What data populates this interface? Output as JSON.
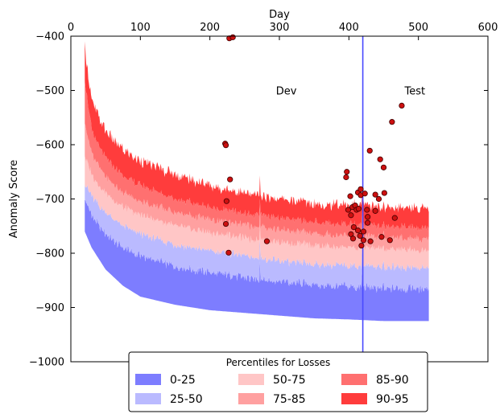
{
  "chart_data": {
    "type": "area",
    "xlabel": "Day",
    "ylabel": "Anomaly Score",
    "xlim": [
      0,
      600
    ],
    "ylim": [
      -1000,
      -400
    ],
    "x_ticks": [
      0,
      100,
      200,
      300,
      400,
      500,
      600
    ],
    "y_ticks": [
      -400,
      -500,
      -600,
      -700,
      -800,
      -900,
      -1000
    ],
    "x_axis_position": "top",
    "grid": false,
    "split_line": {
      "x": 420,
      "color": "#4a4aff"
    },
    "annotations": [
      {
        "text": "Dev",
        "x": 310,
        "y": -500
      },
      {
        "text": "Test",
        "x": 495,
        "y": -500
      }
    ],
    "x_range": [
      20,
      515
    ],
    "legend": {
      "title": "Percentiles for Losses",
      "placement": "bottom-center",
      "entries": [
        {
          "label": "0-25",
          "color": "#7d7dff"
        },
        {
          "label": "25-50",
          "color": "#babaff"
        },
        {
          "label": "50-75",
          "color": "#ffc6c6"
        },
        {
          "label": "75-85",
          "color": "#ffa0a0"
        },
        {
          "label": "85-90",
          "color": "#ff7070"
        },
        {
          "label": "90-95",
          "color": "#ff3c3c"
        }
      ]
    },
    "bands": [
      {
        "name": "0-25",
        "color": "#7d7dff",
        "lower": [
          [
            20,
            -760
          ],
          [
            30,
            -790
          ],
          [
            50,
            -830
          ],
          [
            75,
            -860
          ],
          [
            100,
            -880
          ],
          [
            150,
            -895
          ],
          [
            200,
            -905
          ],
          [
            250,
            -910
          ],
          [
            300,
            -915
          ],
          [
            350,
            -920
          ],
          [
            400,
            -922
          ],
          [
            450,
            -925
          ],
          [
            515,
            -925
          ]
        ]
      },
      {
        "name": "25-50",
        "color": "#babaff",
        "lower": [
          [
            20,
            -700
          ],
          [
            30,
            -730
          ],
          [
            50,
            -765
          ],
          [
            75,
            -790
          ],
          [
            100,
            -805
          ],
          [
            150,
            -825
          ],
          [
            200,
            -835
          ],
          [
            250,
            -845
          ],
          [
            300,
            -852
          ],
          [
            350,
            -858
          ],
          [
            400,
            -862
          ],
          [
            450,
            -865
          ],
          [
            515,
            -865
          ]
        ]
      },
      {
        "name": "50-75",
        "color": "#ffc6c6",
        "lower": [
          [
            20,
            -670
          ],
          [
            30,
            -695
          ],
          [
            50,
            -725
          ],
          [
            75,
            -750
          ],
          [
            100,
            -765
          ],
          [
            150,
            -785
          ],
          [
            200,
            -795
          ],
          [
            250,
            -805
          ],
          [
            300,
            -815
          ],
          [
            350,
            -820
          ],
          [
            400,
            -823
          ],
          [
            450,
            -825
          ],
          [
            515,
            -828
          ]
        ]
      },
      {
        "name": "75-85",
        "color": "#ffa0a0",
        "lower": [
          [
            20,
            -620
          ],
          [
            30,
            -655
          ],
          [
            50,
            -690
          ],
          [
            75,
            -715
          ],
          [
            100,
            -730
          ],
          [
            150,
            -750
          ],
          [
            200,
            -762
          ],
          [
            250,
            -772
          ],
          [
            300,
            -780
          ],
          [
            350,
            -786
          ],
          [
            400,
            -790
          ],
          [
            450,
            -792
          ],
          [
            515,
            -795
          ]
        ]
      },
      {
        "name": "85-90",
        "color": "#ff7070",
        "lower": [
          [
            20,
            -560
          ],
          [
            30,
            -615
          ],
          [
            50,
            -660
          ],
          [
            75,
            -688
          ],
          [
            100,
            -705
          ],
          [
            150,
            -725
          ],
          [
            200,
            -738
          ],
          [
            250,
            -748
          ],
          [
            300,
            -757
          ],
          [
            350,
            -763
          ],
          [
            400,
            -768
          ],
          [
            450,
            -771
          ],
          [
            515,
            -774
          ]
        ]
      },
      {
        "name": "90-95",
        "color": "#ff3c3c",
        "lower": [
          [
            20,
            -480
          ],
          [
            30,
            -575
          ],
          [
            50,
            -625
          ],
          [
            75,
            -657
          ],
          [
            100,
            -675
          ],
          [
            150,
            -700
          ],
          [
            200,
            -715
          ],
          [
            250,
            -727
          ],
          [
            300,
            -735
          ],
          [
            350,
            -742
          ],
          [
            400,
            -747
          ],
          [
            450,
            -750
          ],
          [
            515,
            -754
          ]
        ],
        "upper": [
          [
            20,
            -420
          ],
          [
            30,
            -520
          ],
          [
            50,
            -575
          ],
          [
            75,
            -610
          ],
          [
            100,
            -630
          ],
          [
            150,
            -655
          ],
          [
            200,
            -675
          ],
          [
            250,
            -690
          ],
          [
            300,
            -700
          ],
          [
            350,
            -708
          ],
          [
            400,
            -712
          ],
          [
            450,
            -715
          ],
          [
            515,
            -718
          ]
        ]
      }
    ],
    "scatter_points": [
      {
        "x": 228,
        "y": -404
      },
      {
        "x": 233,
        "y": -402
      },
      {
        "x": 222,
        "y": -598
      },
      {
        "x": 223,
        "y": -601
      },
      {
        "x": 229,
        "y": -664
      },
      {
        "x": 224,
        "y": -704
      },
      {
        "x": 223,
        "y": -746
      },
      {
        "x": 227,
        "y": -799
      },
      {
        "x": 282,
        "y": -778
      },
      {
        "x": 397,
        "y": -650
      },
      {
        "x": 396,
        "y": -660
      },
      {
        "x": 402,
        "y": -695
      },
      {
        "x": 399,
        "y": -720
      },
      {
        "x": 405,
        "y": -715
      },
      {
        "x": 409,
        "y": -712
      },
      {
        "x": 411,
        "y": -720
      },
      {
        "x": 403,
        "y": -730
      },
      {
        "x": 407,
        "y": -752
      },
      {
        "x": 403,
        "y": -765
      },
      {
        "x": 406,
        "y": -773
      },
      {
        "x": 413,
        "y": -688
      },
      {
        "x": 417,
        "y": -682
      },
      {
        "x": 417,
        "y": -693
      },
      {
        "x": 414,
        "y": -718
      },
      {
        "x": 413,
        "y": -758
      },
      {
        "x": 416,
        "y": -768
      },
      {
        "x": 418,
        "y": -786
      },
      {
        "x": 421,
        "y": -776
      },
      {
        "x": 421,
        "y": -760
      },
      {
        "x": 423,
        "y": -690
      },
      {
        "x": 426,
        "y": -720
      },
      {
        "x": 427,
        "y": -733
      },
      {
        "x": 427,
        "y": -744
      },
      {
        "x": 430,
        "y": -611
      },
      {
        "x": 431,
        "y": -778
      },
      {
        "x": 438,
        "y": -722
      },
      {
        "x": 438,
        "y": -692
      },
      {
        "x": 443,
        "y": -700
      },
      {
        "x": 445,
        "y": -627
      },
      {
        "x": 447,
        "y": -770
      },
      {
        "x": 450,
        "y": -642
      },
      {
        "x": 451,
        "y": -689
      },
      {
        "x": 459,
        "y": -776
      },
      {
        "x": 462,
        "y": -558
      },
      {
        "x": 466,
        "y": -735
      },
      {
        "x": 476,
        "y": -528
      }
    ]
  }
}
